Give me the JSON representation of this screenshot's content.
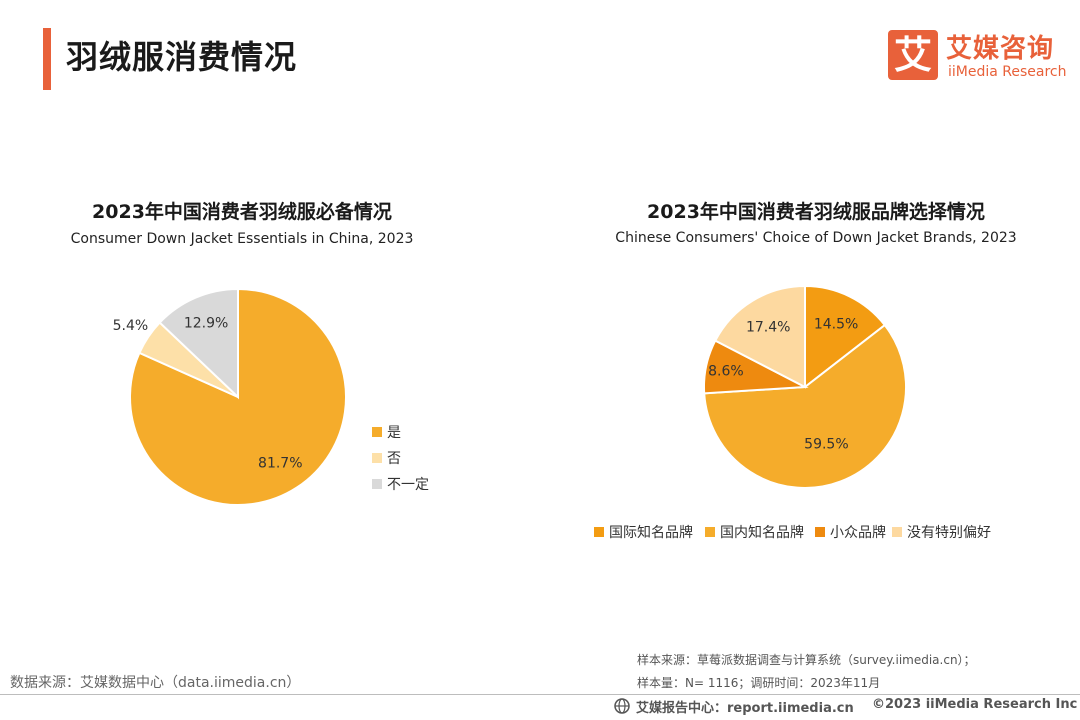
{
  "page": {
    "title": "羽绒服消费情况"
  },
  "logo": {
    "mark": "艾",
    "cn": "艾媒咨询",
    "en": "iiMedia Research"
  },
  "chart_data": [
    {
      "type": "pie",
      "title": "2023年中国消费者羽绒服必备情况",
      "subtitle": "Consumer Down Jacket Essentials in China, 2023",
      "slices": [
        {
          "label": "是",
          "value": 81.7,
          "display": "81.7%",
          "color": "#f5ac2b"
        },
        {
          "label": "否",
          "value": 5.4,
          "display": "5.4%",
          "color": "#fde0a8"
        },
        {
          "label": "不一定",
          "value": 12.9,
          "display": "12.9%",
          "color": "#d9d9d9"
        }
      ],
      "legend_position": "right"
    },
    {
      "type": "pie",
      "title": "2023年中国消费者羽绒服品牌选择情况",
      "subtitle": "Chinese Consumers' Choice of Down Jacket Brands, 2023",
      "slices": [
        {
          "label": "国际知名品牌",
          "value": 14.5,
          "display": "14.5%",
          "color": "#f39c12"
        },
        {
          "label": "国内知名品牌",
          "value": 59.5,
          "display": "59.5%",
          "color": "#f5ac2b"
        },
        {
          "label": "小众品牌",
          "value": 8.6,
          "display": "8.6%",
          "color": "#ee8a0f"
        },
        {
          "label": "没有特别偏好",
          "value": 17.4,
          "display": "17.4%",
          "color": "#fdd9a0"
        }
      ],
      "legend_position": "bottom"
    }
  ],
  "footer": {
    "source_left": "数据来源：艾媒数据中心（data.iimedia.cn）",
    "sample_source": "样本来源：草莓派数据调查与计算系统（survey.iimedia.cn）；",
    "sample_size": "样本量：N= 1116；调研时间：2023年11月",
    "report_center": "艾媒报告中心：report.iimedia.cn",
    "copyright": "©2023  iiMedia Research  Inc"
  }
}
